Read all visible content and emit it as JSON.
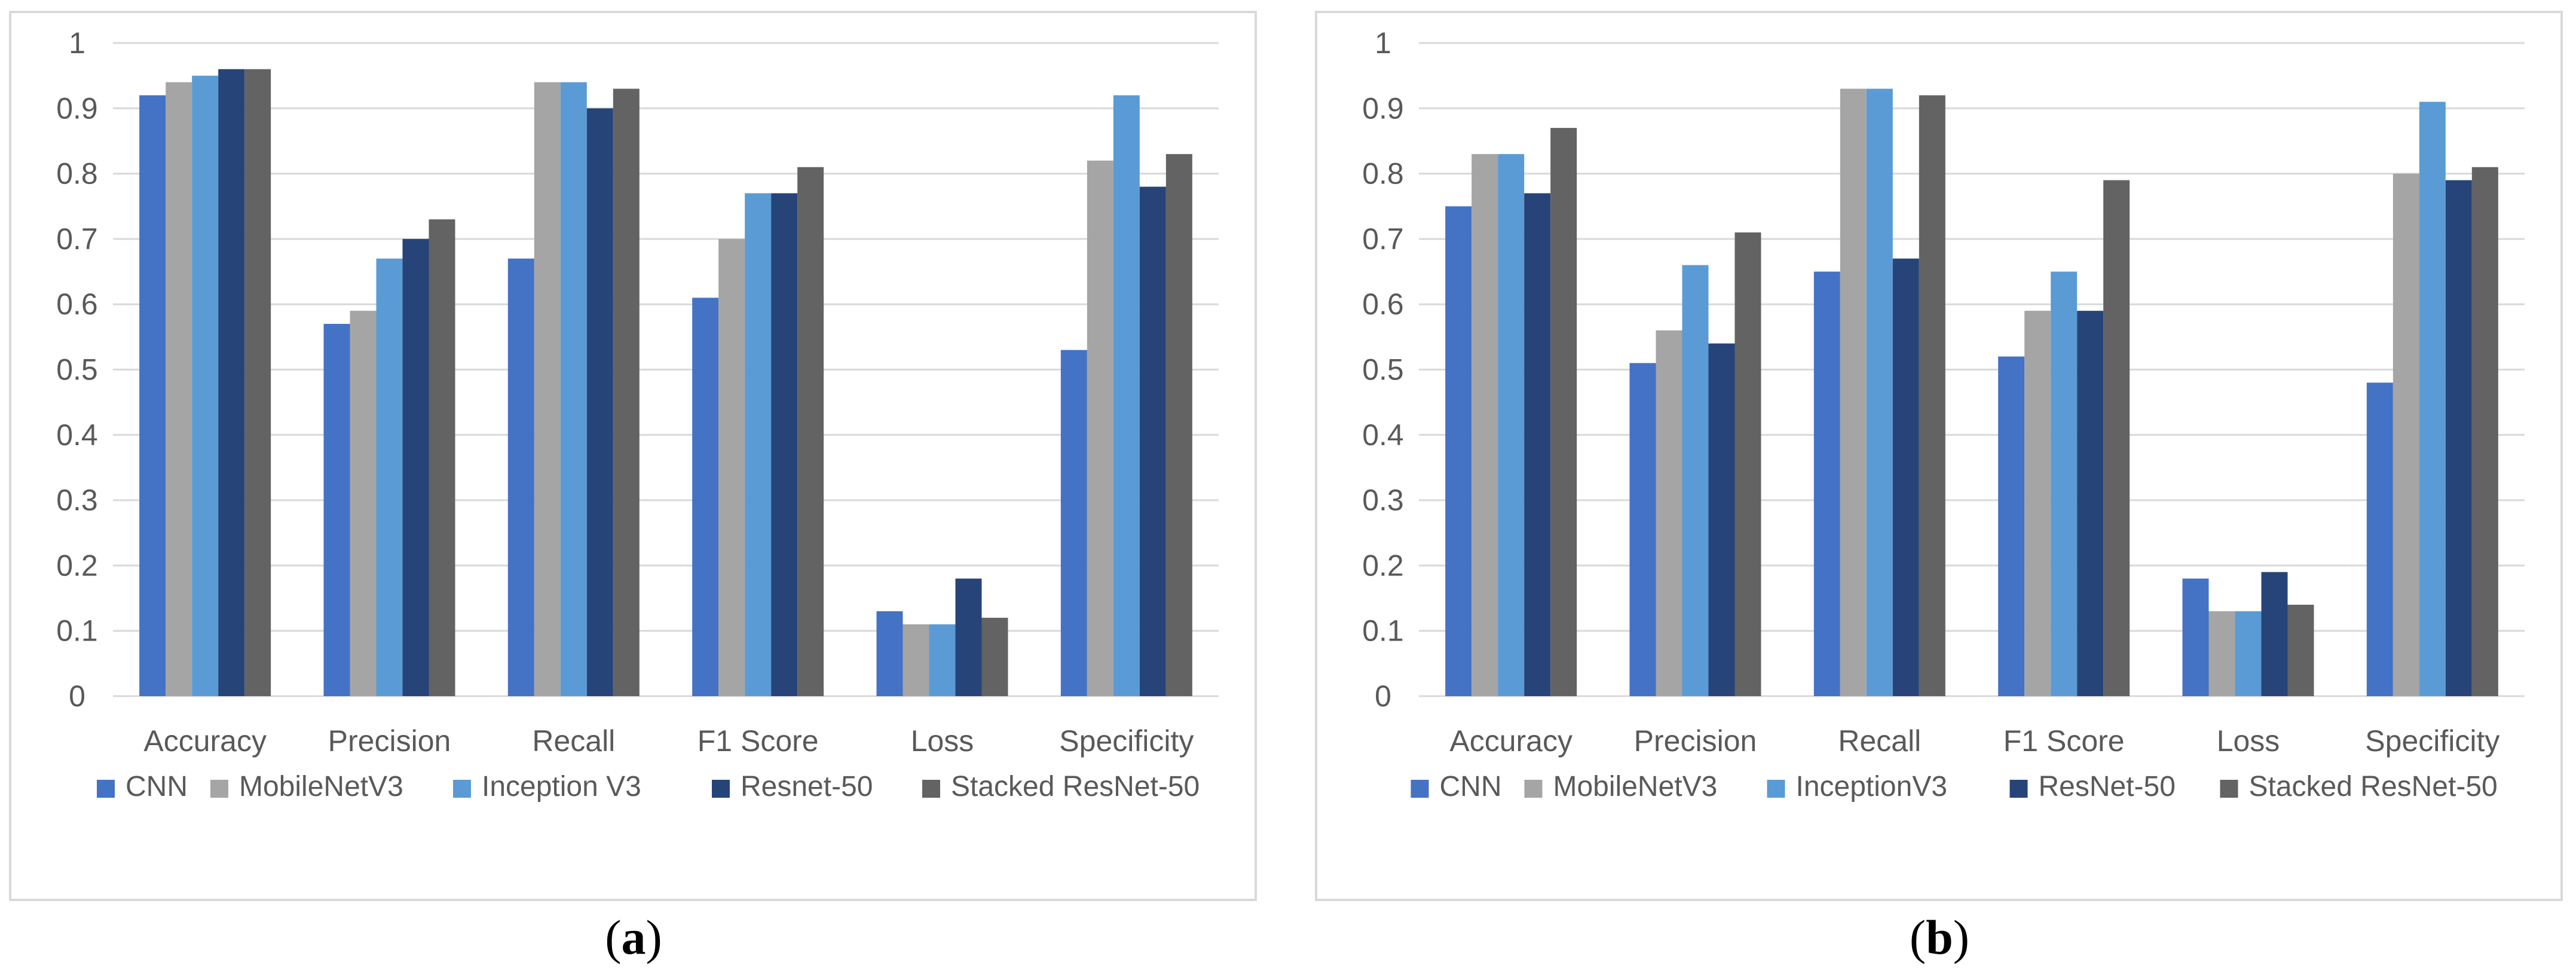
{
  "colors": {
    "CNN": "#4472c4",
    "MobileNetV3": "#a5a5a5",
    "Inception": "#5b9bd5",
    "Resnet": "#264478",
    "Stacked": "#636363",
    "grid": "#d9d9d9",
    "axis_text": "#595959"
  },
  "chart_data": [
    {
      "type": "bar",
      "title": "",
      "xlabel": "",
      "ylabel": "",
      "ylim": [
        0,
        1
      ],
      "yticks": [
        "0",
        "0.1",
        "0.2",
        "0.3",
        "0.4",
        "0.5",
        "0.6",
        "0.7",
        "0.8",
        "0.9",
        "1"
      ],
      "grid": true,
      "legend_position": "bottom",
      "categories": [
        "Accuracy",
        "Precision",
        "Recall",
        "F1 Score",
        "Loss",
        "Specificity"
      ],
      "series": [
        {
          "name": "CNN",
          "color_key": "CNN",
          "values": [
            0.92,
            0.57,
            0.67,
            0.61,
            0.13,
            0.53
          ]
        },
        {
          "name": "MobileNetV3",
          "color_key": "MobileNetV3",
          "values": [
            0.94,
            0.59,
            0.94,
            0.7,
            0.11,
            0.82
          ]
        },
        {
          "name": "Inception V3",
          "color_key": "Inception",
          "values": [
            0.95,
            0.67,
            0.94,
            0.77,
            0.11,
            0.92
          ]
        },
        {
          "name": "Resnet-50",
          "color_key": "Resnet",
          "values": [
            0.96,
            0.7,
            0.9,
            0.77,
            0.18,
            0.78
          ]
        },
        {
          "name": "Stacked ResNet-50",
          "color_key": "Stacked",
          "values": [
            0.96,
            0.73,
            0.93,
            0.81,
            0.12,
            0.83
          ]
        }
      ]
    },
    {
      "type": "bar",
      "title": "",
      "xlabel": "",
      "ylabel": "",
      "ylim": [
        0,
        1
      ],
      "yticks": [
        "0",
        "0.1",
        "0.2",
        "0.3",
        "0.4",
        "0.5",
        "0.6",
        "0.7",
        "0.8",
        "0.9",
        "1"
      ],
      "grid": true,
      "legend_position": "bottom",
      "categories": [
        "Accuracy",
        "Precision",
        "Recall",
        "F1 Score",
        "Loss",
        "Specificity"
      ],
      "series": [
        {
          "name": "CNN",
          "color_key": "CNN",
          "values": [
            0.75,
            0.51,
            0.65,
            0.52,
            0.18,
            0.48
          ]
        },
        {
          "name": "MobileNetV3",
          "color_key": "MobileNetV3",
          "values": [
            0.83,
            0.56,
            0.93,
            0.59,
            0.13,
            0.8
          ]
        },
        {
          "name": "InceptionV3",
          "color_key": "Inception",
          "values": [
            0.83,
            0.66,
            0.93,
            0.65,
            0.13,
            0.91
          ]
        },
        {
          "name": "ResNet-50",
          "color_key": "Resnet",
          "values": [
            0.77,
            0.54,
            0.67,
            0.59,
            0.19,
            0.79
          ]
        },
        {
          "name": "Stacked ResNet-50",
          "color_key": "Stacked",
          "values": [
            0.87,
            0.71,
            0.92,
            0.79,
            0.14,
            0.81
          ]
        }
      ]
    }
  ],
  "captions": {
    "a": {
      "open": "(",
      "letter": "a",
      "close": ")"
    },
    "b": {
      "open": "(",
      "letter": "b",
      "close": ")"
    }
  }
}
